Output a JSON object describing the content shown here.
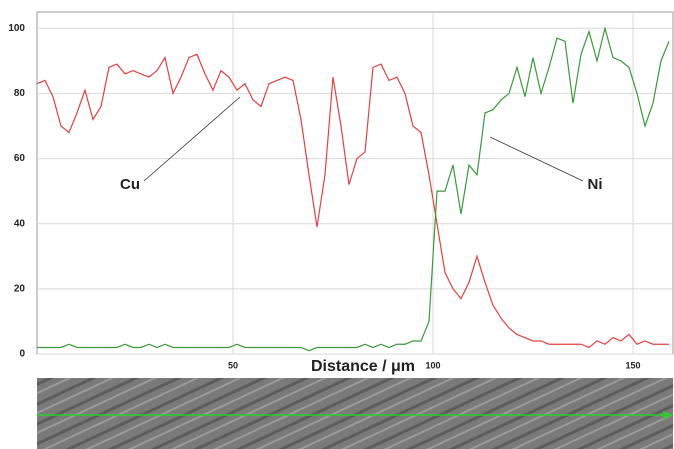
{
  "chart_data": {
    "type": "line",
    "x_label": "Distance / μm",
    "x": [
      1,
      3,
      5,
      7,
      9,
      11,
      13,
      15,
      17,
      19,
      21,
      23,
      25,
      27,
      29,
      31,
      33,
      35,
      37,
      39,
      41,
      43,
      45,
      47,
      49,
      51,
      53,
      55,
      57,
      59,
      61,
      63,
      65,
      67,
      69,
      71,
      73,
      75,
      77,
      79,
      81,
      83,
      85,
      87,
      89,
      91,
      93,
      95,
      97,
      99,
      101,
      103,
      105,
      107,
      109,
      111,
      113,
      115,
      117,
      119,
      121,
      123,
      125,
      127,
      129,
      131,
      133,
      135,
      137,
      139,
      141,
      143,
      145,
      147,
      149,
      151,
      153,
      155,
      157,
      159
    ],
    "series": [
      {
        "name": "Cu",
        "color": "#e8403f",
        "values": [
          83,
          84,
          79,
          70,
          68,
          74,
          81,
          72,
          76,
          88,
          89,
          86,
          87,
          86,
          85,
          87,
          91,
          80,
          85,
          91,
          92,
          86,
          81,
          87,
          85,
          81,
          83,
          78,
          76,
          83,
          84,
          85,
          84,
          72,
          55,
          39,
          55,
          85,
          70,
          52,
          60,
          62,
          88,
          89,
          84,
          85,
          80,
          70,
          68,
          55,
          40,
          25,
          20,
          17,
          22,
          30,
          22,
          15,
          11,
          8,
          6,
          5,
          4,
          4,
          3,
          3,
          3,
          3,
          3,
          2,
          4,
          3,
          5,
          4,
          6,
          3,
          4,
          3,
          3,
          3
        ]
      },
      {
        "name": "Ni",
        "color": "#3a9a3a",
        "values": [
          2,
          2,
          2,
          2,
          3,
          2,
          2,
          2,
          2,
          2,
          2,
          3,
          2,
          2,
          3,
          2,
          3,
          2,
          2,
          2,
          2,
          2,
          2,
          2,
          2,
          3,
          2,
          2,
          2,
          2,
          2,
          2,
          2,
          2,
          1,
          2,
          2,
          2,
          2,
          2,
          2,
          3,
          2,
          3,
          2,
          3,
          3,
          4,
          4,
          10,
          50,
          50,
          58,
          43,
          58,
          55,
          74,
          75,
          78,
          80,
          88,
          79,
          91,
          80,
          88,
          97,
          96,
          77,
          92,
          99,
          90,
          100,
          91,
          90,
          88,
          80,
          70,
          77,
          90,
          96
        ]
      }
    ],
    "xlim": [
      1,
      160
    ],
    "ylim": [
      0,
      105
    ],
    "xticks": [
      50,
      100,
      150
    ],
    "yticks": [
      0,
      20,
      40,
      60,
      80,
      100
    ],
    "grid": true
  }
}
